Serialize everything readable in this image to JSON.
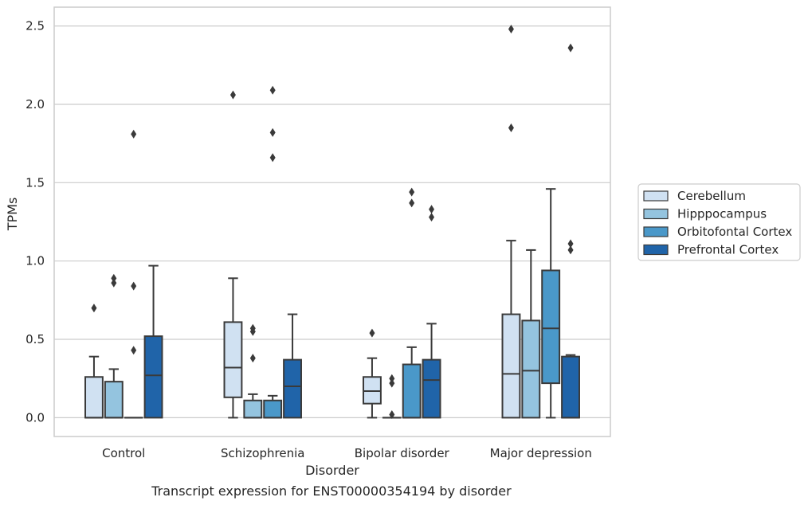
{
  "chart_data": {
    "type": "box",
    "caption": "Transcript expression for ENST00000354194 by disorder",
    "xlabel": "Disorder",
    "ylabel": "TPMs",
    "ylim": [
      -0.12,
      2.62
    ],
    "yticks": [
      "0.0",
      "0.5",
      "1.0",
      "1.5",
      "2.0",
      "2.5"
    ],
    "grid": "horizontal",
    "legend_position": "right",
    "categories": [
      "Control",
      "Schizophrenia",
      "Bipolar disorder",
      "Major depression"
    ],
    "series": [
      {
        "name": "Cerebellum",
        "color": "#d0e1f2",
        "boxes": [
          {
            "q1": 0.0,
            "median": 0.0,
            "q3": 0.26,
            "whisker_low": 0.0,
            "whisker_high": 0.39,
            "outliers": [
              0.7
            ]
          },
          {
            "q1": 0.13,
            "median": 0.32,
            "q3": 0.61,
            "whisker_low": 0.0,
            "whisker_high": 0.89,
            "outliers": [
              2.06
            ]
          },
          {
            "q1": 0.09,
            "median": 0.17,
            "q3": 0.26,
            "whisker_low": 0.0,
            "whisker_high": 0.38,
            "outliers": [
              0.54
            ]
          },
          {
            "q1": 0.0,
            "median": 0.28,
            "q3": 0.66,
            "whisker_low": 0.0,
            "whisker_high": 1.13,
            "outliers": [
              1.85,
              2.48
            ]
          }
        ]
      },
      {
        "name": "Hipppocampus",
        "color": "#94c4df",
        "boxes": [
          {
            "q1": 0.0,
            "median": 0.0,
            "q3": 0.23,
            "whisker_low": 0.0,
            "whisker_high": 0.31,
            "outliers": [
              0.86,
              0.89
            ]
          },
          {
            "q1": 0.0,
            "median": 0.0,
            "q3": 0.11,
            "whisker_low": 0.0,
            "whisker_high": 0.15,
            "outliers": [
              0.38,
              0.55,
              0.57
            ]
          },
          {
            "q1": 0.0,
            "median": 0.0,
            "q3": 0.0,
            "whisker_low": 0.0,
            "whisker_high": 0.0,
            "outliers": [
              0.02,
              0.22,
              0.25
            ]
          },
          {
            "q1": 0.0,
            "median": 0.3,
            "q3": 0.62,
            "whisker_low": 0.0,
            "whisker_high": 1.07,
            "outliers": []
          }
        ]
      },
      {
        "name": "Orbitofontal Cortex",
        "color": "#4a98c9",
        "boxes": [
          {
            "q1": 0.0,
            "median": 0.0,
            "q3": 0.0,
            "whisker_low": 0.0,
            "whisker_high": 0.0,
            "outliers": [
              0.43,
              0.84,
              1.81
            ]
          },
          {
            "q1": 0.0,
            "median": 0.0,
            "q3": 0.11,
            "whisker_low": 0.0,
            "whisker_high": 0.14,
            "outliers": [
              1.66,
              1.82,
              2.09
            ]
          },
          {
            "q1": 0.0,
            "median": 0.0,
            "q3": 0.34,
            "whisker_low": 0.0,
            "whisker_high": 0.45,
            "outliers": [
              1.37,
              1.44
            ]
          },
          {
            "q1": 0.22,
            "median": 0.57,
            "q3": 0.94,
            "whisker_low": 0.0,
            "whisker_high": 1.46,
            "outliers": []
          }
        ]
      },
      {
        "name": "Prefrontal Cortex",
        "color": "#2064a9",
        "boxes": [
          {
            "q1": 0.0,
            "median": 0.27,
            "q3": 0.52,
            "whisker_low": 0.0,
            "whisker_high": 0.97,
            "outliers": []
          },
          {
            "q1": 0.0,
            "median": 0.2,
            "q3": 0.37,
            "whisker_low": 0.0,
            "whisker_high": 0.66,
            "outliers": []
          },
          {
            "q1": 0.0,
            "median": 0.24,
            "q3": 0.37,
            "whisker_low": 0.0,
            "whisker_high": 0.6,
            "outliers": [
              1.28,
              1.33
            ]
          },
          {
            "q1": 0.0,
            "median": 0.0,
            "q3": 0.39,
            "whisker_low": 0.0,
            "whisker_high": 0.4,
            "outliers": [
              1.07,
              1.11,
              2.36
            ]
          }
        ]
      }
    ]
  }
}
